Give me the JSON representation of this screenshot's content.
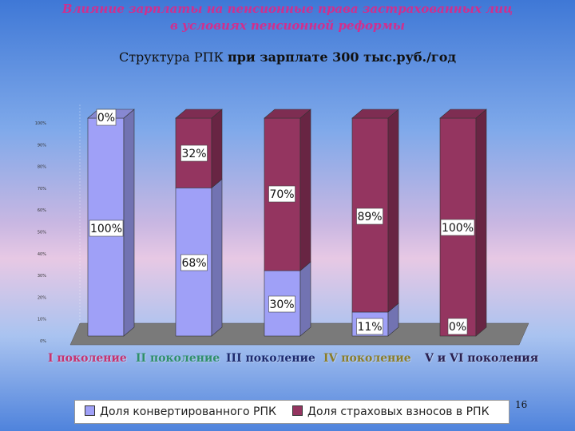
{
  "header": {
    "title_line1": "Влияние зарплаты на пенсионные права застрахованных лиц",
    "title_line2": "в условиях пенсионной реформы",
    "subtitle_part1": "Структура РПК ",
    "subtitle_part2": "при зарплате 300 тыс.руб./год"
  },
  "colors": {
    "converted": "#9fa0f7",
    "insurance": "#943560",
    "floor": "#7a7a7a",
    "cat_pink": "#c8326e",
    "cat_green": "#2f8f6a",
    "cat_navy": "#1d2a6e",
    "cat_olive": "#8a7d2a",
    "cat_dark": "#2a2050"
  },
  "chart_data": {
    "type": "bar",
    "stacked": true,
    "percent": true,
    "categories": [
      "I поколение",
      "II поколение",
      "III поколение",
      "IV поколение",
      "V и VI поколения"
    ],
    "series": [
      {
        "name": "Доля конвертированного РПК",
        "values": [
          100,
          68,
          30,
          11,
          0
        ]
      },
      {
        "name": "Доля страховых взносов в РПК",
        "values": [
          0,
          32,
          70,
          89,
          100
        ]
      }
    ],
    "labels": {
      "converted": [
        "100%",
        "68%",
        "30%",
        "11%",
        "0%"
      ],
      "insurance": [
        "0%",
        "32%",
        "70%",
        "89%",
        "100%"
      ]
    },
    "ytick_labels": [
      "0%",
      "10%",
      "20%",
      "30%",
      "40%",
      "50%",
      "60%",
      "70%",
      "80%",
      "90%",
      "100%"
    ],
    "ylim": [
      0,
      100
    ],
    "legend_position": "bottom"
  },
  "page_number": "16"
}
